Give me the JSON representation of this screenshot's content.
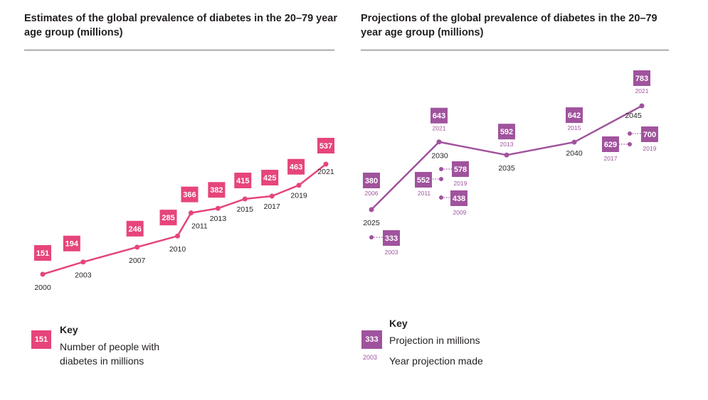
{
  "colors": {
    "estimates": "#e6457a",
    "projections": "#a0539d",
    "axis_text": "#231f20"
  },
  "chart_data": [
    {
      "type": "line",
      "title": "Estimates of the global prevalence of diabetes in the 20–79 year age group (millions)",
      "x": [
        "2000",
        "2003",
        "2007",
        "2010",
        "2011",
        "2013",
        "2015",
        "2017",
        "2019",
        "2021"
      ],
      "values": [
        151,
        194,
        246,
        285,
        366,
        382,
        415,
        425,
        463,
        537
      ],
      "key": {
        "heading": "Key",
        "sample_value": "151",
        "description": "Number of people with diabetes in millions"
      }
    },
    {
      "type": "line",
      "title": "Projections of the global prevalence of diabetes in the 20–79 year age group (millions)",
      "x": [
        "2025",
        "2030",
        "2035",
        "2040",
        "2045"
      ],
      "series": [
        {
          "values": [
            380,
            643,
            592,
            642,
            783
          ],
          "projection_year_made": [
            "2006",
            "2021",
            "2013",
            "2015",
            "2021"
          ]
        }
      ],
      "additional_projections": [
        {
          "target_year": "2025",
          "value": 333,
          "year_made": "2003"
        },
        {
          "target_year": "2030",
          "value": 552,
          "year_made": "2011"
        },
        {
          "target_year": "2030",
          "value": 578,
          "year_made": "2019"
        },
        {
          "target_year": "2030",
          "value": 438,
          "year_made": "2009"
        },
        {
          "target_year": "2045",
          "value": 629,
          "year_made": "2017"
        },
        {
          "target_year": "2045",
          "value": 700,
          "year_made": "2019"
        }
      ],
      "key": {
        "heading": "Key",
        "sample_value": "333",
        "sample_year": "2003",
        "value_label": "Projection in millions",
        "year_label": "Year projection made"
      }
    }
  ]
}
